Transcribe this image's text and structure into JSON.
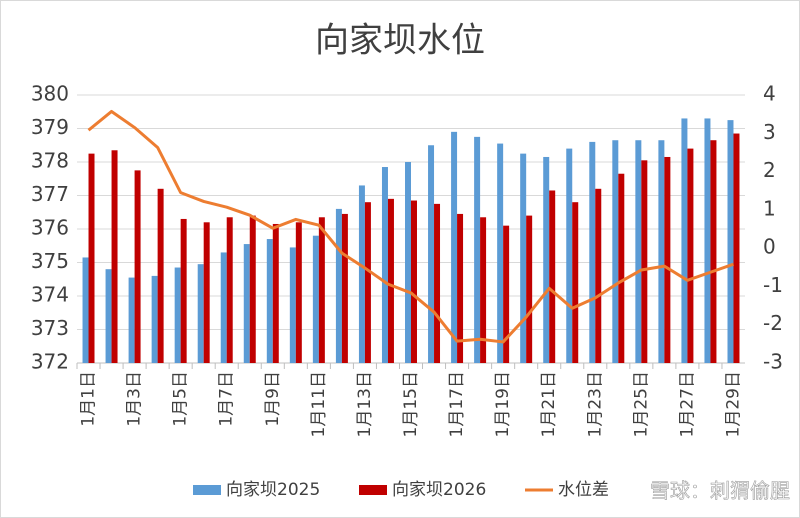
{
  "chart_data": {
    "type": "bar_line",
    "title": "向家坝水位",
    "categories": [
      "1月1日",
      null,
      "1月3日",
      null,
      "1月5日",
      null,
      "1月7日",
      null,
      "1月9日",
      null,
      "1月11日",
      null,
      "1月13日",
      null,
      "1月15日",
      null,
      "1月17日",
      null,
      "1月19日",
      null,
      "1月21日",
      null,
      "1月23日",
      null,
      "1月25日",
      null,
      "1月27日",
      null,
      "1月29日"
    ],
    "series": [
      {
        "name": "向家坝2025",
        "type": "bar",
        "color": "#5b9bd5",
        "values": [
          375.15,
          374.8,
          374.55,
          374.6,
          374.85,
          374.95,
          375.3,
          375.55,
          375.7,
          375.45,
          375.8,
          376.6,
          377.3,
          377.85,
          378.0,
          378.5,
          378.9,
          378.75,
          378.55,
          378.25,
          378.15,
          378.4,
          378.6,
          378.65,
          378.65,
          378.65,
          379.3,
          379.3,
          379.25
        ]
      },
      {
        "name": "向家坝2026",
        "type": "bar",
        "color": "#c00000",
        "values": [
          378.25,
          378.35,
          377.75,
          377.2,
          376.3,
          376.2,
          376.35,
          376.4,
          376.15,
          376.2,
          376.35,
          376.45,
          376.8,
          376.9,
          376.85,
          376.75,
          376.45,
          376.35,
          376.1,
          376.4,
          377.15,
          376.8,
          377.2,
          377.65,
          378.05,
          378.15,
          378.4,
          378.65,
          378.85
        ]
      },
      {
        "name": "水位差",
        "type": "line",
        "axis": "y2",
        "color": "#ed7d31",
        "values": [
          3.08,
          3.57,
          3.15,
          2.63,
          1.45,
          1.22,
          1.07,
          0.86,
          0.52,
          0.75,
          0.6,
          -0.13,
          -0.52,
          -0.94,
          -1.17,
          -1.67,
          -2.43,
          -2.38,
          -2.45,
          -1.8,
          -1.05,
          -1.57,
          -1.3,
          -0.91,
          -0.57,
          -0.47,
          -0.84,
          -0.63,
          -0.42
        ]
      }
    ],
    "ylim": [
      372,
      380
    ],
    "yticks": [
      372,
      373,
      374,
      375,
      376,
      377,
      378,
      379,
      380
    ],
    "y2lim": [
      -3,
      4
    ],
    "y2ticks": [
      -3,
      -2,
      -1,
      0,
      1,
      2,
      3,
      4
    ],
    "grid": true,
    "legend": "bottom",
    "watermark": "雪球：刺猬偷腥"
  }
}
